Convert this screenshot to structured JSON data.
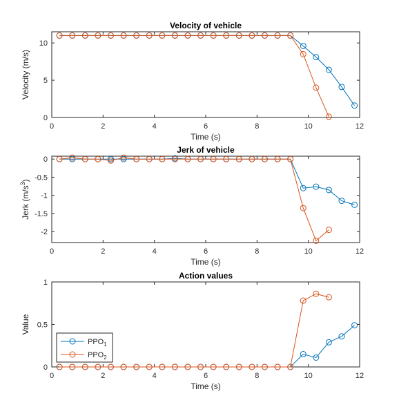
{
  "colors": {
    "series_1": "#0072BD",
    "series_2": "#D95319",
    "axis": "#262626",
    "background": "#ffffff"
  },
  "chart_data": [
    {
      "type": "line",
      "title": "Velocity of vehicle",
      "xlabel": "Time (s)",
      "ylabel": "Velocity (m/s)",
      "xlim": [
        0,
        12
      ],
      "ylim": [
        0,
        11.5
      ],
      "xticks": [
        0,
        2,
        4,
        6,
        8,
        10,
        12
      ],
      "yticks": [
        0,
        5,
        10
      ],
      "grid": false,
      "series": [
        {
          "name": "PPO1",
          "x": [
            0.3,
            0.8,
            1.3,
            1.8,
            2.3,
            2.8,
            3.3,
            3.8,
            4.3,
            4.8,
            5.3,
            5.8,
            6.3,
            6.8,
            7.3,
            7.8,
            8.3,
            8.8,
            9.3,
            9.8,
            10.3,
            10.8,
            11.3,
            11.8
          ],
          "y": [
            11,
            11,
            11,
            11,
            11,
            11,
            11,
            11,
            11,
            11,
            11,
            11,
            11,
            11,
            11,
            11,
            11,
            11,
            11,
            9.6,
            8.1,
            6.4,
            4.1,
            1.6
          ]
        },
        {
          "name": "PPO2",
          "x": [
            0.3,
            0.8,
            1.3,
            1.8,
            2.3,
            2.8,
            3.3,
            3.8,
            4.3,
            4.8,
            5.3,
            5.8,
            6.3,
            6.8,
            7.3,
            7.8,
            8.3,
            8.8,
            9.3,
            9.8,
            10.3,
            10.8
          ],
          "y": [
            11,
            11,
            11,
            11,
            11,
            11,
            11,
            11,
            11,
            11,
            11,
            11,
            11,
            11,
            11,
            11,
            11,
            11,
            11,
            8.5,
            4.0,
            0.1
          ]
        }
      ]
    },
    {
      "type": "line",
      "title": "Jerk of vehicle",
      "xlabel": "Time (s)",
      "ylabel": "Jerk (m/s",
      "ylabel_sup": "3",
      "ylabel_end": ")",
      "xlim": [
        0,
        12
      ],
      "ylim": [
        -2.3,
        0.08
      ],
      "xticks": [
        0,
        2,
        4,
        6,
        8,
        10,
        12
      ],
      "yticks": [
        0,
        -0.5,
        -1,
        -1.5,
        -2
      ],
      "ytick_labels": [
        "0",
        "-0.5",
        "-1",
        "-1.5",
        "-2"
      ],
      "grid": false,
      "series": [
        {
          "name": "PPO1",
          "x": [
            0.3,
            0.8,
            1.3,
            1.8,
            2.3,
            2.8,
            3.3,
            3.8,
            4.3,
            4.8,
            5.3,
            5.8,
            6.3,
            6.8,
            7.3,
            7.8,
            8.3,
            8.8,
            9.3,
            9.8,
            10.3,
            10.8,
            11.3,
            11.8
          ],
          "y": [
            0,
            0,
            0,
            0,
            0,
            0,
            0,
            0,
            0,
            0.02,
            0,
            0,
            0,
            0,
            0,
            0,
            0,
            0,
            0,
            -0.8,
            -0.76,
            -0.85,
            -1.15,
            -1.26
          ]
        },
        {
          "name": "PPO2",
          "x": [
            0.3,
            0.8,
            1.3,
            1.8,
            2.3,
            2.8,
            3.3,
            3.8,
            4.3,
            4.8,
            5.3,
            5.8,
            6.3,
            6.8,
            7.3,
            7.8,
            8.3,
            8.8,
            9.3,
            9.8,
            10.3,
            10.8
          ],
          "y": [
            0,
            0.04,
            0,
            0,
            -0.04,
            0.04,
            0,
            0,
            0,
            0,
            0,
            0,
            0,
            0,
            0,
            0,
            0,
            0,
            0,
            -1.35,
            -2.25,
            -1.95
          ]
        }
      ]
    },
    {
      "type": "line",
      "title": "Action values",
      "xlabel": "Time (s)",
      "ylabel": "Value",
      "xlim": [
        0,
        12
      ],
      "ylim": [
        0,
        1
      ],
      "xticks": [
        0,
        2,
        4,
        6,
        8,
        10,
        12
      ],
      "yticks": [
        0,
        0.5,
        1
      ],
      "grid": false,
      "legend": "bottom-left",
      "series": [
        {
          "name": "PPO",
          "subscript": "1",
          "x": [
            0.3,
            0.8,
            1.3,
            1.8,
            2.3,
            2.8,
            3.3,
            3.8,
            4.3,
            4.8,
            5.3,
            5.8,
            6.3,
            6.8,
            7.3,
            7.8,
            8.3,
            8.8,
            9.3,
            9.8,
            10.3,
            10.8,
            11.3,
            11.8
          ],
          "y": [
            0,
            0,
            0,
            0,
            0,
            0,
            0,
            0,
            0,
            0,
            0,
            0,
            0,
            0,
            0,
            0,
            0,
            0,
            0,
            0.15,
            0.11,
            0.29,
            0.36,
            0.49
          ]
        },
        {
          "name": "PPO",
          "subscript": "2",
          "x": [
            0.3,
            0.8,
            1.3,
            1.8,
            2.3,
            2.8,
            3.3,
            3.8,
            4.3,
            4.8,
            5.3,
            5.8,
            6.3,
            6.8,
            7.3,
            7.8,
            8.3,
            8.8,
            9.3,
            9.8,
            10.3,
            10.8
          ],
          "y": [
            0,
            0,
            0,
            0,
            0,
            0,
            0,
            0,
            0,
            0,
            0,
            0,
            0,
            0,
            0,
            0,
            0,
            0,
            0,
            0.78,
            0.86,
            0.82
          ]
        }
      ]
    }
  ]
}
